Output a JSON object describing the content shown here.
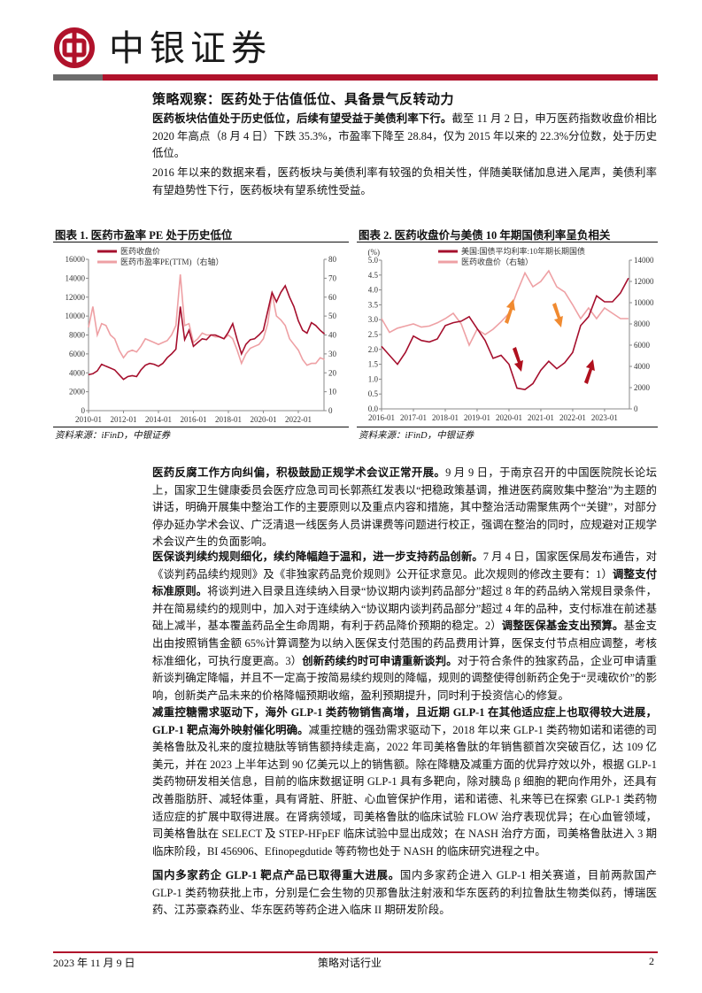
{
  "header": {
    "brand": "中银证券",
    "brand_color": "#b0122b",
    "logo_icon": "bank-of-china-logo"
  },
  "section_title": "策略观察：医药处于估值低位、具备景气反转动力",
  "paragraphs": [
    [
      {
        "b": true,
        "t": "医药板块估值处于历史低位，后续有望受益于美债利率下行。"
      },
      {
        "b": false,
        "t": "截至 11 月 2 日，申万医药指数收盘价相比 2020 年高点（8 月 4 日）下跌 35.3%，市盈率下降至 28.84，仅为 2015 年以来的 22.3%分位数，处于历史低位。"
      }
    ],
    [
      {
        "b": false,
        "t": "2016 年以来的数据来看，医药板块与美债利率有较强的负相关性，伴随美联储加息进入尾声，美债利率有望趋势性下行，医药板块有望系统性受益。"
      }
    ],
    [
      {
        "b": true,
        "t": "医药反腐工作方向纠偏，积极鼓励正规学术会议正常开展。"
      },
      {
        "b": false,
        "t": "9 月 9 日，于南京召开的中国医院院长论坛上，国家卫生健康委员会医疗应急司司长郭燕红发表以“把稳政策基调，推进医药腐败集中整治”为主题的讲话，明确开展集中整治工作的主要原则以及重点内容和措施，其中整治活动需聚焦两个“关键”，对部分停办延办学术会议、广泛清退一线医务人员讲课费等问题进行校正，强调在整治的同时，应规避对正规学术会议产生的负面影响。"
      }
    ],
    [
      {
        "b": true,
        "t": "医保谈判续约规则细化，续约降幅趋于温和，进一步支持药品创新。"
      },
      {
        "b": false,
        "t": "7 月 4 日，国家医保局发布通告，对《谈判药品续约规则》及《非独家药品竞价规则》公开征求意见。此次规则的修改主要有：1）"
      },
      {
        "b": true,
        "t": "调整支付标准原则。"
      },
      {
        "b": false,
        "t": "将谈判进入目录且连续纳入目录“协议期内谈判药品部分”超过 8 年的药品纳入常规目录条件，并在简易续约的规则中，加入对于连续纳入“协议期内谈判药品部分”超过 4 年的品种，支付标准在前述基础上减半，基本覆盖药品全生命周期，有利于药品降价预期的稳定。2）"
      },
      {
        "b": true,
        "t": "调整医保基金支出预算。"
      },
      {
        "b": false,
        "t": "基金支出由按照销售金额 65%计算调整为以纳入医保支付范围的药品费用计算，医保支付节点相应调整，考核标准细化，可执行度更高。3）"
      },
      {
        "b": true,
        "t": "创新药续约时可申请重新谈判。"
      },
      {
        "b": false,
        "t": "对于符合条件的独家药品，企业可申请重新谈判确定降幅，并且不一定高于按简易续约规则的降幅，规则的调整使得创新药企免于“灵魂砍价”的影响，创新类产品未来的价格降幅预期收缩，盈利预期提升，同时利于投资信心的修复。"
      }
    ],
    [
      {
        "b": true,
        "t": "减重控糖需求驱动下，海外 GLP-1 类药物销售高增，且近期 GLP-1 在其他适应症上也取得较大进展，GLP-1 靶点海外映射催化明确。"
      },
      {
        "b": false,
        "t": "减重控糖的强劲需求驱动下，2018 年以来 GLP-1 类药物如诺和诺德的司美格鲁肽及礼来的度拉糖肽等销售额持续走高，2022 年司美格鲁肽的年销售额首次突破百亿，达 109 亿美元，并在 2023 上半年达到 90 亿美元以上的销售额。除在降糖及减重方面的优异疗效以外，根据 GLP-1 类药物研发相关信息，目前的临床数据证明 GLP-1 具有多靶向，除对胰岛 β 细胞的靶向作用外，还具有改善脂肪肝、减轻体重，具有肾脏、肝脏、心血管保护作用，诺和诺德、礼来等已在探索 GLP-1 类药物适应症的扩展中取得进展。在肾病领域，司美格鲁肽的临床试验 FLOW 治疗表现优异；在心血管领域，司美格鲁肽在 SELECT 及 STEP-HFpEF 临床试验中显出成效；在 NASH 治疗方面，司美格鲁肽进入 3 期临床阶段，BI 456906、Efinopegdutide 等药物也处于 NASH 的临床研究进程之中。"
      }
    ],
    [
      {
        "b": true,
        "t": "国内多家药企 GLP-1 靶点产品已取得重大进展。"
      },
      {
        "b": false,
        "t": "国内多家药企进入 GLP-1 相关赛道，目前两款国产 GLP-1 类药物获批上市，分别是仁会生物的贝那鲁肽注射液和华东医药的利拉鲁肽生物类似药，博瑞医药、江苏豪森药业、华东医药等药企进入临床 II 期研发阶段。"
      }
    ]
  ],
  "figures": [
    {
      "title": "图表 1. 医药市盈率 PE 处于历史低位",
      "source": "资料来源：iFinD，中银证券"
    },
    {
      "title": "图表 2. 医药收盘价与美债 10 年期国债利率呈负相关",
      "source": "资料来源：iFinD，中银证券"
    }
  ],
  "chart_data": [
    {
      "type": "line",
      "title": "图表 1. 医药市盈率 PE 处于历史低位",
      "x_ticks": [
        "2010-01",
        "2012-01",
        "2014-01",
        "2016-01",
        "2018-01",
        "2020-01",
        "2022-01"
      ],
      "y_left": {
        "lim": [
          0,
          16000
        ],
        "ticks": [
          0,
          2000,
          4000,
          6000,
          8000,
          10000,
          12000,
          14000,
          16000
        ]
      },
      "y_right": {
        "lim": [
          0,
          80
        ],
        "ticks": [
          0,
          10,
          20,
          30,
          40,
          50,
          60,
          70,
          80
        ]
      },
      "grid": false,
      "legend": "top",
      "x": [
        "2010-01",
        "2010-04",
        "2010-07",
        "2010-10",
        "2011-01",
        "2011-04",
        "2011-07",
        "2011-10",
        "2012-01",
        "2012-04",
        "2012-07",
        "2012-10",
        "2013-01",
        "2013-04",
        "2013-07",
        "2013-10",
        "2014-01",
        "2014-04",
        "2014-07",
        "2014-10",
        "2015-01",
        "2015-04",
        "2015-07",
        "2015-10",
        "2016-01",
        "2016-04",
        "2016-07",
        "2016-10",
        "2017-01",
        "2017-04",
        "2017-07",
        "2017-10",
        "2018-01",
        "2018-04",
        "2018-07",
        "2018-10",
        "2019-01",
        "2019-04",
        "2019-07",
        "2019-10",
        "2020-01",
        "2020-04",
        "2020-07",
        "2020-10",
        "2021-01",
        "2021-04",
        "2021-07",
        "2021-10",
        "2022-01",
        "2022-04",
        "2022-07",
        "2022-10",
        "2023-01",
        "2023-04",
        "2023-07"
      ],
      "series": [
        {
          "name": "医药收盘价",
          "axis": "left",
          "color": "#a50f2d",
          "values": [
            3800,
            3900,
            4200,
            4900,
            4700,
            4500,
            4300,
            3800,
            3300,
            3600,
            3700,
            3600,
            4300,
            4800,
            5000,
            4900,
            4700,
            5000,
            5600,
            6000,
            6500,
            11000,
            7500,
            8500,
            6800,
            7200,
            7600,
            7500,
            8000,
            8000,
            7800,
            7600,
            8300,
            9200,
            7500,
            6000,
            7000,
            7500,
            7600,
            8000,
            8500,
            10500,
            12500,
            11500,
            12500,
            13200,
            12000,
            11000,
            9500,
            8500,
            8200,
            9300,
            9000,
            8500,
            8100
          ]
        },
        {
          "name": "医药市盈率PE(TTM)（右轴）",
          "axis": "right",
          "color": "#eea0a4",
          "values": [
            44,
            55,
            40,
            46,
            45,
            40,
            38,
            32,
            28,
            31,
            32,
            31,
            34,
            38,
            37,
            36,
            35,
            36,
            37,
            40,
            45,
            72,
            45,
            46,
            36,
            38,
            41,
            40,
            40,
            39,
            39,
            38,
            40,
            38,
            32,
            25,
            30,
            33,
            34,
            35,
            38,
            46,
            62,
            50,
            48,
            45,
            38,
            35,
            32,
            27,
            24,
            25,
            25,
            28,
            27
          ]
        }
      ]
    },
    {
      "type": "line",
      "title": "图表 2. 医药收盘价与美债 10 年期国债利率呈负相关",
      "y_left_unit": "(%)",
      "x_ticks": [
        "2016-01",
        "2017-01",
        "2018-01",
        "2019-01",
        "2020-01",
        "2021-01",
        "2022-01",
        "2023-01"
      ],
      "y_left": {
        "lim": [
          0,
          5
        ],
        "ticks": [
          "0.0",
          "0.5",
          "1.0",
          "1.5",
          "2.0",
          "2.5",
          "3.0",
          "3.5",
          "4.0",
          "4.5",
          "5.0"
        ]
      },
      "y_right": {
        "lim": [
          0,
          14000
        ],
        "ticks": [
          0,
          2000,
          4000,
          6000,
          8000,
          10000,
          12000,
          14000
        ]
      },
      "grid": false,
      "legend": "top",
      "x": [
        "2016-01",
        "2016-04",
        "2016-07",
        "2016-10",
        "2017-01",
        "2017-04",
        "2017-07",
        "2017-10",
        "2018-01",
        "2018-04",
        "2018-07",
        "2018-10",
        "2019-01",
        "2019-04",
        "2019-07",
        "2019-10",
        "2020-01",
        "2020-04",
        "2020-07",
        "2020-10",
        "2021-01",
        "2021-04",
        "2021-07",
        "2021-10",
        "2022-01",
        "2022-04",
        "2022-07",
        "2022-10",
        "2023-01",
        "2023-04",
        "2023-07",
        "2023-10"
      ],
      "series": [
        {
          "name": "美国:国债平均利率:10年期长期国债",
          "axis": "left",
          "color": "#a50f2d",
          "values": [
            2.1,
            1.8,
            1.5,
            1.9,
            2.45,
            2.3,
            2.25,
            2.35,
            2.8,
            2.9,
            2.95,
            3.1,
            2.7,
            2.3,
            1.7,
            1.8,
            1.5,
            0.7,
            0.65,
            0.85,
            1.3,
            1.6,
            1.35,
            1.55,
            1.9,
            2.8,
            3.1,
            3.8,
            3.6,
            3.6,
            3.9,
            4.4
          ]
        },
        {
          "name": "医药收盘价（右轴）",
          "axis": "right",
          "color": "#eea0a4",
          "values": [
            8500,
            7200,
            7600,
            7800,
            8000,
            7700,
            7800,
            8100,
            8500,
            9000,
            8000,
            6000,
            7500,
            7000,
            7500,
            8200,
            9000,
            11000,
            12800,
            11500,
            12000,
            13000,
            11500,
            11000,
            9800,
            8500,
            9500,
            8500,
            9500,
            9000,
            8500,
            8500
          ]
        }
      ],
      "annotations": [
        {
          "type": "arrow-up",
          "at": "2020-01",
          "color": "#f08a30"
        },
        {
          "type": "arrow-down",
          "at": "2021-07",
          "color": "#f08a30"
        },
        {
          "type": "arrow-down",
          "at": "2020-04",
          "color": "#b0101e"
        },
        {
          "type": "arrow-up",
          "at": "2022-07",
          "color": "#b0101e"
        }
      ]
    }
  ],
  "footer": {
    "date": "2023 年 11 月 9 日",
    "report_type": "策略对话行业",
    "page": "2"
  }
}
